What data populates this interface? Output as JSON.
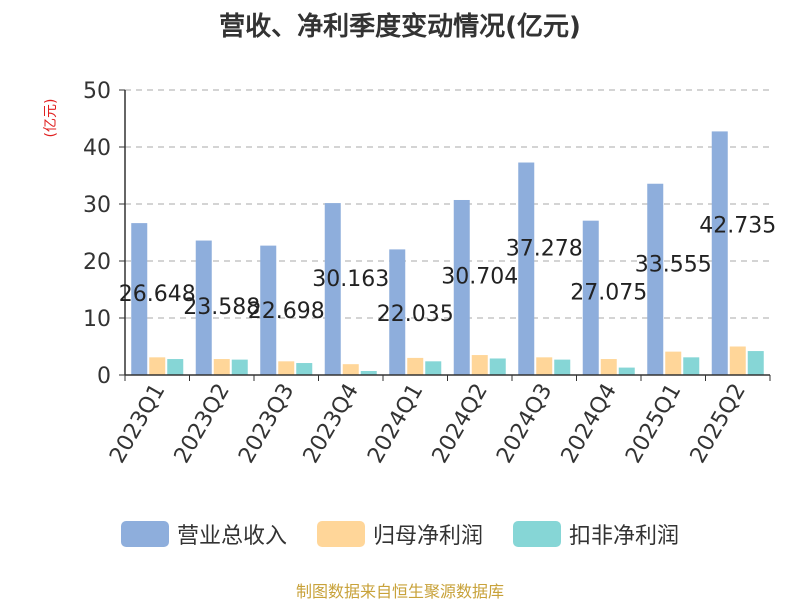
{
  "colors": {
    "revenue": "#8EAEDC",
    "net_profit": "#FFD699",
    "net_profit_deducted": "#86D6D6",
    "title": "#333333",
    "axis": "#333333",
    "grid": "#AAAAAA",
    "unit": "#E02020",
    "source": "#C8A23A"
  },
  "chart_data": {
    "type": "bar",
    "title": "营收、净利季度变动情况(亿元)",
    "ylabel": "(亿元)",
    "xlabel": "",
    "ylim": [
      0,
      50
    ],
    "yticks": [
      "0",
      "10",
      "20",
      "30",
      "40",
      "50"
    ],
    "grid": true,
    "legend_position": "bottom",
    "categories": [
      "2023Q1",
      "2023Q2",
      "2023Q3",
      "2023Q4",
      "2024Q1",
      "2024Q2",
      "2024Q3",
      "2024Q4",
      "2025Q1",
      "2025Q2"
    ],
    "series": [
      {
        "name": "营业总收入",
        "values": [
          26.648,
          23.588,
          22.698,
          30.163,
          22.035,
          30.704,
          37.278,
          27.075,
          33.555,
          42.735
        ],
        "labels": [
          "26.648",
          "23.588",
          "22.698",
          "30.163",
          "22.035",
          "30.704",
          "37.278",
          "27.075",
          "33.555",
          "42.735"
        ]
      },
      {
        "name": "归母净利润",
        "values": [
          3.1,
          2.8,
          2.4,
          1.9,
          3.0,
          3.5,
          3.1,
          2.8,
          4.1,
          5.0
        ]
      },
      {
        "name": "扣非净利润",
        "values": [
          2.8,
          2.7,
          2.1,
          0.7,
          2.4,
          2.9,
          2.7,
          1.3,
          3.1,
          4.2
        ]
      }
    ]
  },
  "footer": {
    "source": "制图数据来自恒生聚源数据库"
  }
}
